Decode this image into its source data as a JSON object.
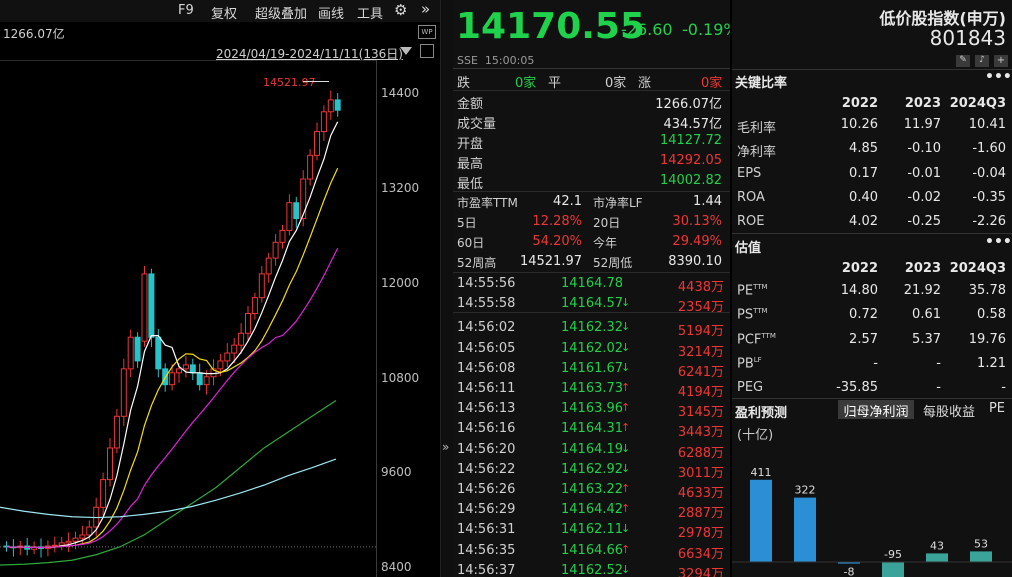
{
  "toolbar": {
    "f9": "F9",
    "fuquan": "复权",
    "overlay": "超级叠加",
    "draw": "画线",
    "tools": "工具",
    "more_icon": "»"
  },
  "chart": {
    "amount_label": "1266.07亿",
    "date_range": "2024/04/19-2024/11/11(136日)",
    "high_marker": "14521.97",
    "y_ticks": [
      "14400",
      "13200",
      "12000",
      "10800",
      "9600",
      "8400"
    ]
  },
  "chart_data": {
    "type": "candlestick",
    "ylim": [
      8300,
      15000
    ],
    "y_ticks": [
      14400,
      13200,
      12000,
      10800,
      9600,
      8400
    ],
    "high_marker": 14521.97,
    "date_range": "2024/04/19-2024/11/11(136日)"
  },
  "quote": {
    "price": "14170.55",
    "change": "-26.60",
    "change_pct": "-0.19%",
    "index_name": "低价股指数(申万)",
    "index_code": "801843",
    "exchange_time": "SSE  15:00:05"
  },
  "breadth": {
    "down_label": "跌",
    "down": "0家",
    "flat_label": "平",
    "flat": "0家",
    "up_label": "涨",
    "up": "0家"
  },
  "stats": [
    {
      "label": "金额",
      "value": "1266.07亿",
      "color": "white"
    },
    {
      "label": "成交量",
      "value": "434.57亿",
      "color": "white"
    },
    {
      "label": "开盘",
      "value": "14127.72",
      "color": "green"
    },
    {
      "label": "最高",
      "value": "14292.05",
      "color": "red"
    },
    {
      "label": "最低",
      "value": "14002.82",
      "color": "green"
    }
  ],
  "valuation": [
    {
      "l1": "市盈率TTM",
      "v1": "42.1",
      "c1": "white",
      "l2": "市净率LF",
      "v2": "1.44",
      "c2": "white"
    },
    {
      "l1": "5日",
      "v1": "12.28%",
      "c1": "red",
      "l2": "20日",
      "v2": "30.13%",
      "c2": "red"
    },
    {
      "l1": "60日",
      "v1": "54.20%",
      "c1": "red",
      "l2": "今年",
      "v2": "29.49%",
      "c2": "red"
    },
    {
      "l1": "52周高",
      "v1": "14521.97",
      "c1": "white",
      "l2": "52周低",
      "v2": "8390.10",
      "c2": "white"
    }
  ],
  "ticks": [
    {
      "time": "14:55:56",
      "price": "14164.78",
      "dir": "",
      "vol": "4438万"
    },
    {
      "time": "14:55:58",
      "price": "14164.57",
      "dir": "down",
      "vol": "2354万"
    },
    {
      "time": "14:56:02",
      "price": "14162.32",
      "dir": "down",
      "vol": "5194万"
    },
    {
      "time": "14:56:05",
      "price": "14162.02",
      "dir": "down",
      "vol": "3214万"
    },
    {
      "time": "14:56:08",
      "price": "14161.67",
      "dir": "down",
      "vol": "6241万"
    },
    {
      "time": "14:56:11",
      "price": "14163.73",
      "dir": "up",
      "vol": "4194万"
    },
    {
      "time": "14:56:13",
      "price": "14163.96",
      "dir": "up",
      "vol": "3145万"
    },
    {
      "time": "14:56:16",
      "price": "14164.31",
      "dir": "up",
      "vol": "3443万"
    },
    {
      "time": "14:56:20",
      "price": "14164.19",
      "dir": "down",
      "vol": "6288万"
    },
    {
      "time": "14:56:22",
      "price": "14162.92",
      "dir": "down",
      "vol": "3011万"
    },
    {
      "time": "14:56:26",
      "price": "14163.22",
      "dir": "up",
      "vol": "4633万"
    },
    {
      "time": "14:56:29",
      "price": "14164.42",
      "dir": "up",
      "vol": "2887万"
    },
    {
      "time": "14:56:31",
      "price": "14162.11",
      "dir": "down",
      "vol": "2978万"
    },
    {
      "time": "14:56:35",
      "price": "14164.66",
      "dir": "up",
      "vol": "6634万"
    },
    {
      "time": "14:56:37",
      "price": "14162.52",
      "dir": "down",
      "vol": "3294万"
    }
  ],
  "ratios": {
    "title": "关键比率",
    "years": [
      "2022",
      "2023",
      "2024Q3"
    ],
    "rows": [
      {
        "label": "毛利率",
        "v": [
          "10.26",
          "11.97",
          "10.41"
        ]
      },
      {
        "label": "净利率",
        "v": [
          "4.85",
          "-0.10",
          "-1.60"
        ]
      },
      {
        "label": "EPS",
        "v": [
          "0.17",
          "-0.01",
          "-0.04"
        ]
      },
      {
        "label": "ROA",
        "v": [
          "0.40",
          "-0.02",
          "-0.35"
        ]
      },
      {
        "label": "ROE",
        "v": [
          "4.02",
          "-0.25",
          "-2.26"
        ]
      }
    ]
  },
  "valuation2": {
    "title": "估值",
    "years": [
      "2022",
      "2023",
      "2024Q3"
    ],
    "rows": [
      {
        "label": "PETTM",
        "v": [
          "14.80",
          "21.92",
          "35.78"
        ]
      },
      {
        "label": "PSTTM",
        "v": [
          "0.72",
          "0.61",
          "0.58"
        ]
      },
      {
        "label": "PCFTTM",
        "v": [
          "2.57",
          "5.37",
          "19.76"
        ]
      },
      {
        "label": "PBLF",
        "v": [
          "-",
          "-",
          "1.21"
        ]
      },
      {
        "label": "PEG",
        "v": [
          "-35.85",
          "-",
          "-"
        ]
      }
    ]
  },
  "forecast": {
    "title": "盈利预测",
    "tabs": [
      "归母净利润",
      "每股收益",
      "PE"
    ],
    "unit": "(十亿)",
    "bars": [
      411,
      322,
      -8,
      -95,
      43,
      53
    ],
    "bar_labels": [
      "411",
      "322",
      "-8",
      "-95",
      "43",
      "53"
    ]
  }
}
